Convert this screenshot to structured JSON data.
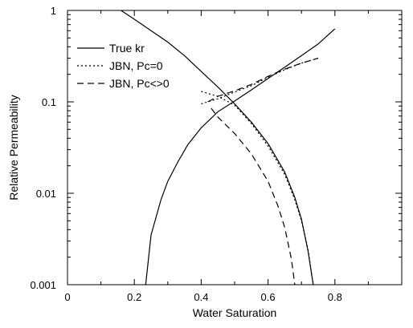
{
  "chart_data": {
    "type": "line",
    "title": "",
    "xlabel": "Water Saturation",
    "ylabel": "Relative Permeability",
    "xlim": [
      0,
      1
    ],
    "ylim": [
      0.001,
      1
    ],
    "yscale": "log",
    "grid": false,
    "legend_position": "top-left",
    "x_ticks": [
      0,
      0.2,
      0.4,
      0.6,
      0.8
    ],
    "x_tick_labels": [
      "0",
      "0.2",
      "0.4",
      "0.6",
      "0.8"
    ],
    "y_ticks": [
      0.001,
      0.01,
      0.1,
      1
    ],
    "y_tick_labels": [
      "0.001",
      "0.01",
      "0.1",
      "1"
    ],
    "series": [
      {
        "name": "True kr",
        "style": "solid",
        "color": "#000000",
        "x": [
          0.234,
          0.25,
          0.28,
          0.3,
          0.33,
          0.36,
          0.4,
          0.45,
          0.5,
          0.55,
          0.6,
          0.65,
          0.7,
          0.75,
          0.8
        ],
        "y": [
          0.001,
          0.0035,
          0.0086,
          0.0135,
          0.022,
          0.034,
          0.052,
          0.078,
          0.102,
          0.135,
          0.18,
          0.24,
          0.32,
          0.43,
          0.63
        ]
      },
      {
        "name": "True kr",
        "style": "solid",
        "color": "#000000",
        "x": [
          0.16,
          0.2,
          0.25,
          0.3,
          0.35,
          0.4,
          0.45,
          0.5,
          0.55,
          0.6,
          0.65,
          0.68,
          0.7,
          0.72,
          0.735
        ],
        "y": [
          1.0,
          0.8,
          0.6,
          0.45,
          0.32,
          0.215,
          0.145,
          0.095,
          0.06,
          0.035,
          0.017,
          0.009,
          0.0052,
          0.0023,
          0.001
        ]
      },
      {
        "name": "JBN, Pc=0",
        "style": "dotted",
        "color": "#000000",
        "x": [
          0.4,
          0.45,
          0.5,
          0.55,
          0.6,
          0.65,
          0.7,
          0.75
        ],
        "y": [
          0.095,
          0.108,
          0.128,
          0.15,
          0.185,
          0.225,
          0.265,
          0.3
        ]
      },
      {
        "name": "JBN, Pc=0",
        "style": "dotted",
        "color": "#000000",
        "x": [
          0.4,
          0.45,
          0.5,
          0.55,
          0.6,
          0.65,
          0.68,
          0.7,
          0.72,
          0.735
        ],
        "y": [
          0.13,
          0.115,
          0.092,
          0.058,
          0.033,
          0.016,
          0.0085,
          0.005,
          0.0024,
          0.001
        ]
      },
      {
        "name": "JBN, Pc<>0",
        "style": "dashed",
        "color": "#000000",
        "x": [
          0.42,
          0.45,
          0.5,
          0.55,
          0.6,
          0.65,
          0.7,
          0.75
        ],
        "y": [
          0.1,
          0.115,
          0.132,
          0.155,
          0.19,
          0.228,
          0.265,
          0.3
        ]
      },
      {
        "name": "JBN, Pc<>0",
        "style": "dashed",
        "color": "#000000",
        "x": [
          0.43,
          0.45,
          0.5,
          0.55,
          0.6,
          0.63,
          0.65,
          0.67,
          0.68
        ],
        "y": [
          0.085,
          0.068,
          0.045,
          0.027,
          0.0135,
          0.0072,
          0.0042,
          0.0019,
          0.001
        ]
      }
    ],
    "legend": [
      {
        "label": "True kr",
        "style": "solid"
      },
      {
        "label": "JBN, Pc=0",
        "style": "dotted"
      },
      {
        "label": "JBN, Pc<>0",
        "style": "dashed"
      }
    ]
  }
}
